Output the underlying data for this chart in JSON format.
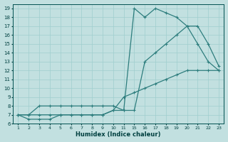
{
  "xlabel": "Humidex (Indice chaleur)",
  "bg_color": "#c2e0e0",
  "grid_color": "#9fcece",
  "line_color": "#2d7d7d",
  "xlim": [
    0.5,
    23.5
  ],
  "ylim": [
    6,
    19.5
  ],
  "xtick_vals": [
    1,
    2,
    3,
    4,
    5,
    6,
    7,
    8,
    9,
    10,
    11,
    15,
    16,
    17,
    18,
    19,
    20,
    21,
    22,
    23
  ],
  "xtick_labels": [
    "1",
    "2",
    "3",
    "4",
    "5",
    "6",
    "7",
    "8",
    "9",
    "10",
    "11",
    "15",
    "16",
    "17",
    "18",
    "19",
    "20",
    "21",
    "22",
    "23"
  ],
  "ytick_vals": [
    6,
    7,
    8,
    9,
    10,
    11,
    12,
    13,
    14,
    15,
    16,
    17,
    18,
    19
  ],
  "line1_x": [
    1,
    2,
    3,
    4,
    5,
    6,
    7,
    8,
    9,
    10,
    11,
    15,
    16,
    17,
    18,
    19,
    20,
    21,
    22,
    23
  ],
  "line1_y": [
    7,
    6.5,
    6.5,
    6.5,
    7,
    7,
    7,
    7,
    7,
    7.5,
    7.5,
    19,
    18,
    19,
    18.5,
    18,
    17,
    15,
    13,
    12
  ],
  "line2_x": [
    1,
    2,
    3,
    4,
    5,
    6,
    7,
    8,
    9,
    10,
    11,
    15,
    16,
    17,
    18,
    19,
    20,
    21,
    22,
    23
  ],
  "line2_y": [
    7,
    7,
    8,
    8,
    8,
    8,
    8,
    8,
    8,
    8,
    7.5,
    7.5,
    13,
    14,
    15,
    16,
    17,
    17,
    15,
    12.5
  ],
  "line3_x": [
    1,
    2,
    3,
    4,
    5,
    6,
    7,
    8,
    9,
    10,
    11,
    15,
    16,
    17,
    18,
    19,
    20,
    21,
    22,
    23
  ],
  "line3_y": [
    7,
    7,
    7,
    7,
    7,
    7,
    7,
    7,
    7,
    7.5,
    9,
    9.5,
    10,
    10.5,
    11,
    11.5,
    12,
    12,
    12,
    12
  ]
}
